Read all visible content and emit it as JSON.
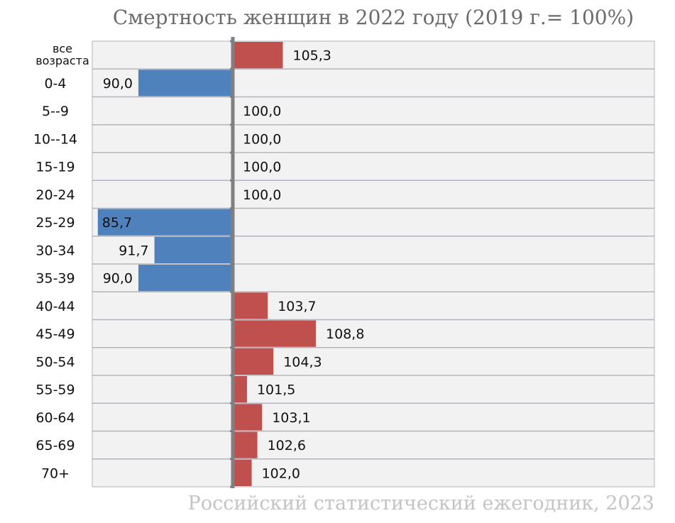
{
  "chart_data": {
    "type": "bar",
    "orientation": "horizontal",
    "title": "Смертность женщин в 2022 году (2019 г.= 100%)",
    "source": "Российский статистический ежегодник, 2023",
    "baseline": 100,
    "categories": [
      "все возраста",
      "0-4",
      "5--9",
      "10--14",
      "15-19",
      "20-24",
      "25-29",
      "30-34",
      "35-39",
      "40-44",
      "45-49",
      "50-54",
      "55-59",
      "60-64",
      "65-69",
      "70+"
    ],
    "values": [
      105.3,
      90.0,
      100.0,
      100.0,
      100.0,
      100.0,
      85.7,
      91.7,
      90.0,
      103.7,
      108.8,
      104.3,
      101.5,
      103.1,
      102.6,
      102.0
    ],
    "value_labels": [
      "105,3",
      "90,0",
      "100,0",
      "100,0",
      "100,0",
      "100,0",
      "85,7",
      "91,7",
      "90,0",
      "103,7",
      "108,8",
      "104,3",
      "101,5",
      "103,1",
      "102,6",
      "102,0"
    ],
    "colors": {
      "above": "#c0504d",
      "below": "#4f81bd",
      "axis": "#808080",
      "plot_bg": "#f2f2f2",
      "grid": "#b4b4bc"
    },
    "grid": true
  }
}
